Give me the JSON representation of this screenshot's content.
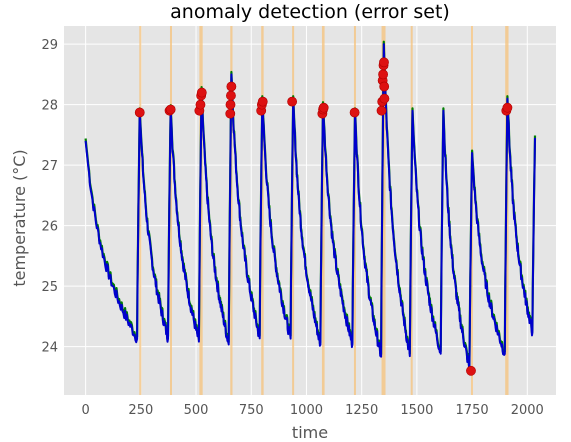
{
  "chart_data": {
    "type": "line",
    "title": "anomaly detection (error set)",
    "xlabel": "time",
    "ylabel": "temperature (°C)",
    "xlim": [
      -98,
      2130
    ],
    "ylim": [
      23.2,
      29.3
    ],
    "xticks": [
      0,
      250,
      500,
      750,
      1000,
      1250,
      1500,
      1750,
      2000
    ],
    "yticks": [
      24,
      25,
      26,
      27,
      28,
      29
    ],
    "grid": true,
    "background": "#e5e5e5",
    "colors": {
      "series_blue": "#0000cc",
      "series_green": "#008000",
      "anomaly_red": "#dd1111",
      "anomaly_edge": "#b00000",
      "highlight_band": "#f5c27a"
    },
    "cycles": [
      {
        "start": 0,
        "peak": 27.4,
        "peak_x": 0,
        "end_x": 100,
        "low": 24.5
      },
      {
        "start": 100,
        "peak": 27.9,
        "peak_x": 245,
        "end_x": 245,
        "low": 24.1
      },
      {
        "start": 245,
        "peak": 27.95,
        "peak_x": 385,
        "end_x": 385,
        "low": 24.1
      },
      {
        "start": 385,
        "peak": 28.25,
        "peak_x": 525,
        "end_x": 525,
        "low": 24.05
      },
      {
        "start": 525,
        "peak": 28.5,
        "peak_x": 660,
        "end_x": 660,
        "low": 24.0
      },
      {
        "start": 660,
        "peak": 28.1,
        "peak_x": 800,
        "end_x": 800,
        "low": 24.1
      },
      {
        "start": 800,
        "peak": 28.1,
        "peak_x": 940,
        "end_x": 940,
        "low": 24.1
      },
      {
        "start": 940,
        "peak": 28.0,
        "peak_x": 1075,
        "end_x": 1075,
        "low": 24.0
      },
      {
        "start": 1075,
        "peak": 27.9,
        "peak_x": 1220,
        "end_x": 1220,
        "low": 24.0
      },
      {
        "start": 1220,
        "peak": 29.0,
        "peak_x": 1350,
        "end_x": 1350,
        "low": 23.8
      },
      {
        "start": 1350,
        "peak": 27.9,
        "peak_x": 1480,
        "end_x": 1480,
        "low": 23.8
      },
      {
        "start": 1480,
        "peak": 27.9,
        "peak_x": 1620,
        "end_x": 1620,
        "low": 23.85
      },
      {
        "start": 1620,
        "peak": 27.2,
        "peak_x": 1750,
        "end_x": 1750,
        "low": 23.6
      },
      {
        "start": 1750,
        "peak": 28.1,
        "peak_x": 1910,
        "end_x": 1910,
        "low": 23.85
      },
      {
        "start": 1910,
        "peak": 27.45,
        "peak_x": 2035,
        "end_x": 2035,
        "low": 24.2
      }
    ],
    "highlight_bands": [
      [
        243,
        246
      ],
      [
        382,
        388
      ],
      [
        515,
        530
      ],
      [
        655,
        665
      ],
      [
        795,
        806
      ],
      [
        935,
        940
      ],
      [
        1070,
        1082
      ],
      [
        1215,
        1222
      ],
      [
        1340,
        1358
      ],
      [
        1472,
        1478
      ],
      [
        1745,
        1748
      ],
      [
        1900,
        1915
      ]
    ],
    "anomalies": [
      {
        "x": 245,
        "y": 27.87
      },
      {
        "x": 380,
        "y": 27.9
      },
      {
        "x": 385,
        "y": 27.92
      },
      {
        "x": 515,
        "y": 27.9
      },
      {
        "x": 520,
        "y": 28.0
      },
      {
        "x": 523,
        "y": 28.15
      },
      {
        "x": 526,
        "y": 28.2
      },
      {
        "x": 655,
        "y": 27.85
      },
      {
        "x": 656,
        "y": 28.0
      },
      {
        "x": 658,
        "y": 28.15
      },
      {
        "x": 660,
        "y": 28.3
      },
      {
        "x": 795,
        "y": 27.9
      },
      {
        "x": 798,
        "y": 28.0
      },
      {
        "x": 802,
        "y": 28.05
      },
      {
        "x": 935,
        "y": 28.05
      },
      {
        "x": 1072,
        "y": 27.85
      },
      {
        "x": 1075,
        "y": 27.92
      },
      {
        "x": 1078,
        "y": 27.95
      },
      {
        "x": 1218,
        "y": 27.87
      },
      {
        "x": 1340,
        "y": 27.9
      },
      {
        "x": 1343,
        "y": 28.05
      },
      {
        "x": 1345,
        "y": 28.4
      },
      {
        "x": 1347,
        "y": 28.5
      },
      {
        "x": 1349,
        "y": 28.65
      },
      {
        "x": 1351,
        "y": 28.7
      },
      {
        "x": 1352,
        "y": 28.3
      },
      {
        "x": 1353,
        "y": 28.1
      },
      {
        "x": 1745,
        "y": 23.6
      },
      {
        "x": 1905,
        "y": 27.9
      },
      {
        "x": 1910,
        "y": 27.95
      }
    ]
  }
}
